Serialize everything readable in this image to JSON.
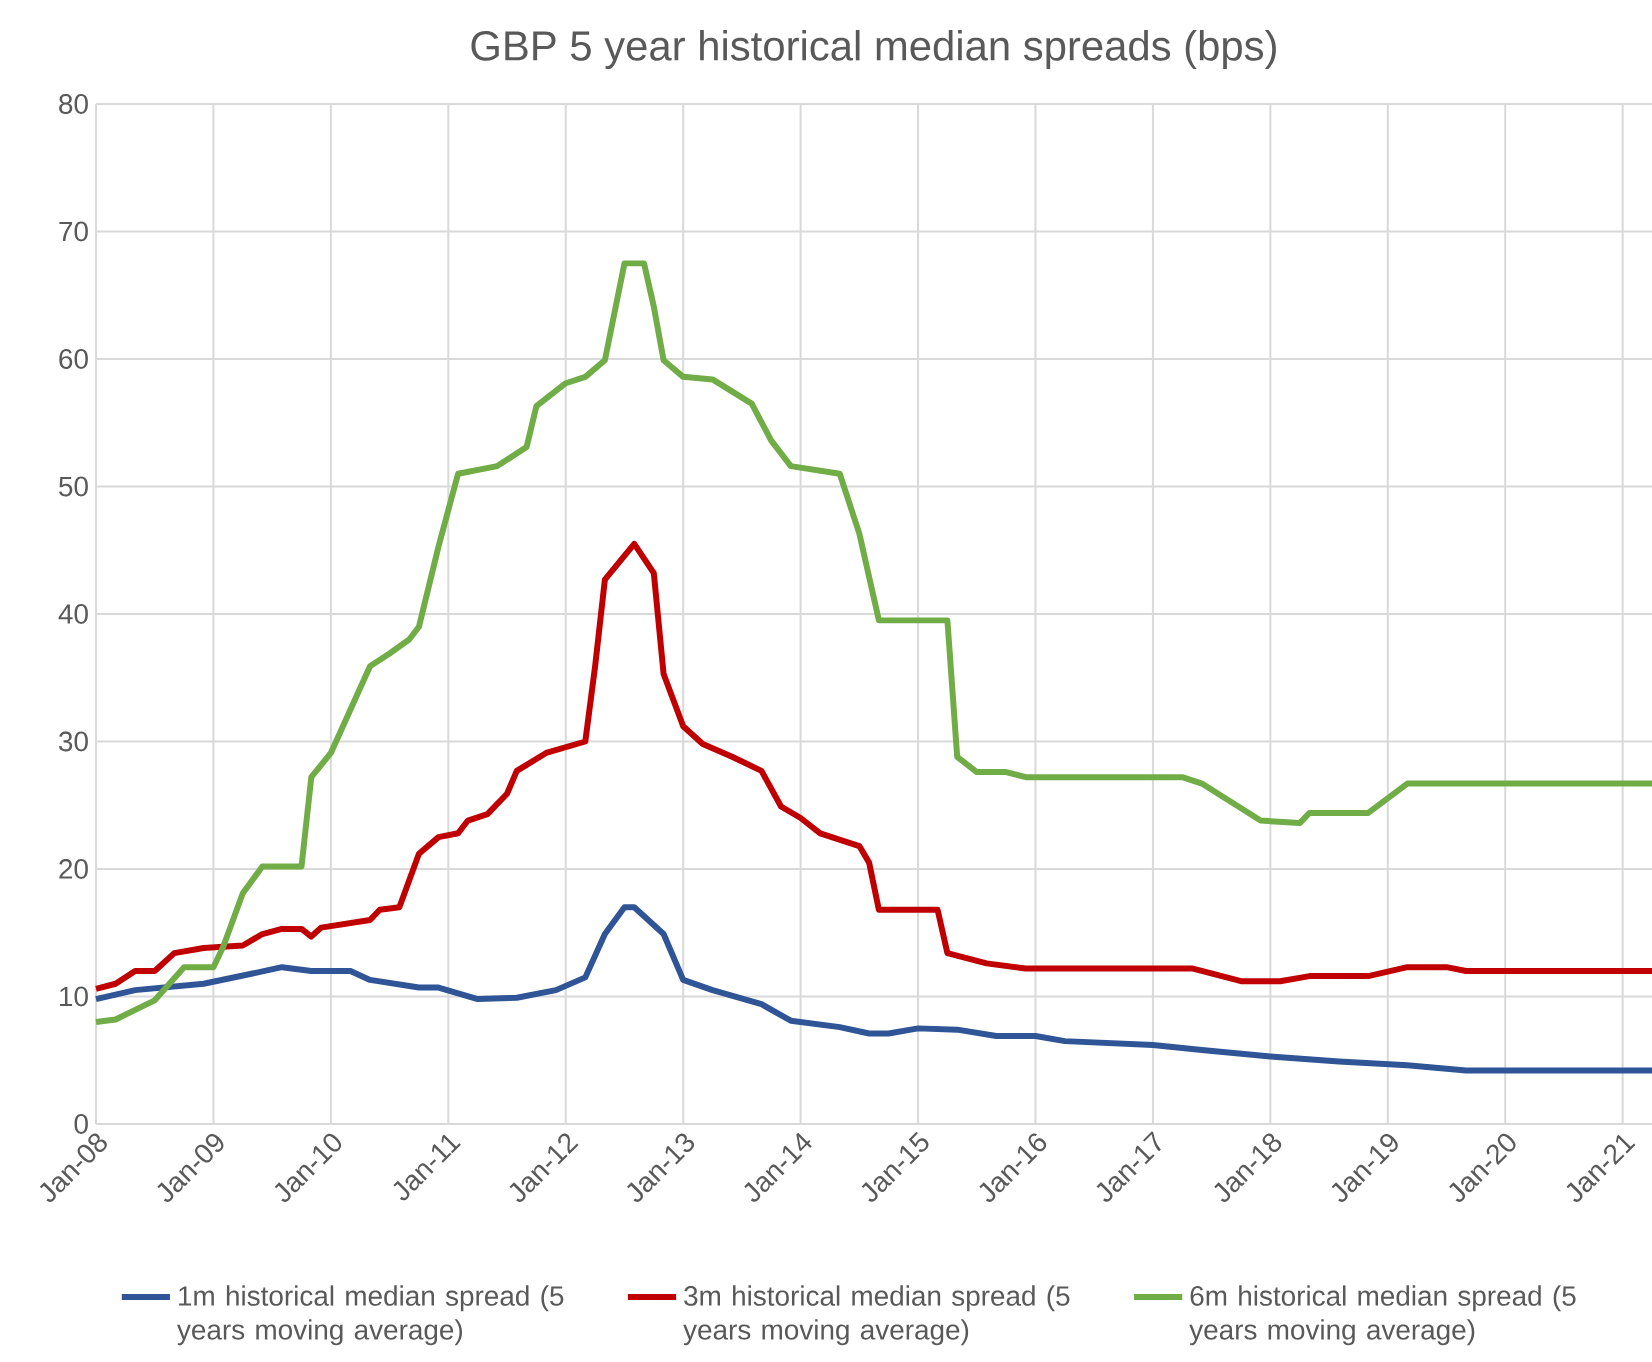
{
  "chart_data": {
    "type": "line",
    "title": "GBP 5 year historical median spreads (bps)",
    "xlim": [
      "2008-01",
      "2021-04"
    ],
    "xticks": [
      {
        "value": "2008-01",
        "label": "Jan-08"
      },
      {
        "value": "2009-01",
        "label": "Jan-09"
      },
      {
        "value": "2010-01",
        "label": "Jan-10"
      },
      {
        "value": "2011-01",
        "label": "Jan-11"
      },
      {
        "value": "2012-01",
        "label": "Jan-12"
      },
      {
        "value": "2013-01",
        "label": "Jan-13"
      },
      {
        "value": "2014-01",
        "label": "Jan-14"
      },
      {
        "value": "2015-01",
        "label": "Jan-15"
      },
      {
        "value": "2016-01",
        "label": "Jan-16"
      },
      {
        "value": "2017-01",
        "label": "Jan-17"
      },
      {
        "value": "2018-01",
        "label": "Jan-18"
      },
      {
        "value": "2019-01",
        "label": "Jan-19"
      },
      {
        "value": "2020-01",
        "label": "Jan-20"
      },
      {
        "value": "2021-01",
        "label": "Jan-21"
      }
    ],
    "ylim": [
      0,
      80
    ],
    "yticks": [
      0,
      10,
      20,
      30,
      40,
      50,
      60,
      70,
      80
    ],
    "grid": true,
    "legend": "bottom",
    "marker": "none",
    "line_style": "solid",
    "series": [
      {
        "name": "1m historical median spread (5 years moving average)",
        "color": "#2f5597",
        "x": [
          "2008-01",
          "2008-05",
          "2008-12",
          "2009-05",
          "2009-08",
          "2009-11",
          "2010-03",
          "2010-05",
          "2010-10",
          "2010-12",
          "2011-04",
          "2011-08",
          "2011-12",
          "2012-03",
          "2012-05",
          "2012-07",
          "2012-08",
          "2012-11",
          "2013-01",
          "2013-04",
          "2013-09",
          "2013-12",
          "2014-05",
          "2014-08",
          "2014-10",
          "2015-01",
          "2015-05",
          "2015-09",
          "2016-01",
          "2016-04",
          "2017-01",
          "2017-06",
          "2018-01",
          "2018-08",
          "2019-03",
          "2019-09",
          "2021-04"
        ],
        "values": [
          9.8,
          10.5,
          11.0,
          11.8,
          12.3,
          12.0,
          12.0,
          11.3,
          10.7,
          10.7,
          9.8,
          9.9,
          10.5,
          11.5,
          14.9,
          17.0,
          17.0,
          14.9,
          11.3,
          10.5,
          9.4,
          8.1,
          7.6,
          7.1,
          7.1,
          7.5,
          7.4,
          6.9,
          6.9,
          6.5,
          6.2,
          5.8,
          5.3,
          4.9,
          4.6,
          4.2,
          4.2
        ]
      },
      {
        "name": "3m historical median spread (5 years moving average)",
        "color": "#c00000",
        "x": [
          "2008-01",
          "2008-03",
          "2008-05",
          "2008-07",
          "2008-09",
          "2008-12",
          "2009-04",
          "2009-06",
          "2009-08",
          "2009-10",
          "2009-11",
          "2009-12",
          "2010-05",
          "2010-06",
          "2010-08",
          "2010-10",
          "2010-12",
          "2011-02",
          "2011-03",
          "2011-05",
          "2011-07",
          "2011-08",
          "2011-11",
          "2012-03",
          "2012-04",
          "2012-05",
          "2012-08",
          "2012-10",
          "2012-11",
          "2013-01",
          "2013-03",
          "2013-06",
          "2013-09",
          "2013-11",
          "2014-01",
          "2014-03",
          "2014-07",
          "2014-08",
          "2014-09",
          "2015-03",
          "2015-04",
          "2015-08",
          "2015-12",
          "2017-05",
          "2017-10",
          "2018-02",
          "2018-05",
          "2018-11",
          "2019-03",
          "2019-07",
          "2019-09",
          "2021-04"
        ],
        "values": [
          10.6,
          11.0,
          12.0,
          12.0,
          13.4,
          13.8,
          14.0,
          14.9,
          15.3,
          15.3,
          14.7,
          15.4,
          16.0,
          16.8,
          17.0,
          21.2,
          22.5,
          22.8,
          23.8,
          24.3,
          25.9,
          27.7,
          29.1,
          30.0,
          35.9,
          42.7,
          45.5,
          43.2,
          35.3,
          31.2,
          29.8,
          28.8,
          27.7,
          24.9,
          24.0,
          22.8,
          21.8,
          20.5,
          16.8,
          16.8,
          13.4,
          12.6,
          12.2,
          12.2,
          11.2,
          11.2,
          11.6,
          11.6,
          12.3,
          12.3,
          12.0,
          12.0
        ]
      },
      {
        "name": "6m historical median spread (5 years moving average)",
        "color": "#70ad47",
        "x": [
          "2008-01",
          "2008-03",
          "2008-07",
          "2008-10",
          "2009-01",
          "2009-02",
          "2009-04",
          "2009-06",
          "2009-10",
          "2009-11",
          "2010-01",
          "2010-05",
          "2010-07",
          "2010-09",
          "2010-10",
          "2010-12",
          "2011-02",
          "2011-06",
          "2011-09",
          "2011-10",
          "2012-01",
          "2012-03",
          "2012-05",
          "2012-07",
          "2012-09",
          "2012-10",
          "2012-11",
          "2013-01",
          "2013-04",
          "2013-08",
          "2013-10",
          "2013-12",
          "2014-05",
          "2014-07",
          "2014-09",
          "2015-04",
          "2015-05",
          "2015-07",
          "2015-10",
          "2015-12",
          "2017-04",
          "2017-06",
          "2017-12",
          "2018-04",
          "2018-05",
          "2018-11",
          "2019-03",
          "2021-04"
        ],
        "values": [
          8.0,
          8.2,
          9.7,
          12.3,
          12.3,
          13.9,
          18.1,
          20.2,
          20.2,
          27.2,
          29.1,
          35.9,
          36.9,
          38.0,
          39.0,
          45.3,
          51.0,
          51.6,
          53.1,
          56.3,
          58.1,
          58.6,
          59.9,
          67.5,
          67.5,
          64.1,
          59.9,
          58.6,
          58.4,
          56.5,
          53.6,
          51.6,
          51.0,
          46.3,
          39.5,
          39.5,
          28.8,
          27.6,
          27.6,
          27.2,
          27.2,
          26.7,
          23.8,
          23.6,
          24.4,
          24.4,
          26.7,
          26.7
        ]
      }
    ]
  }
}
